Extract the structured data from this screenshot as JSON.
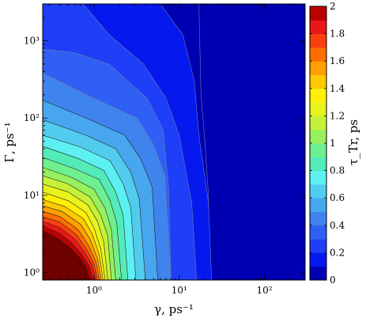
{
  "chart_data": {
    "type": "heatmap",
    "subtype": "filled-contour",
    "xlabel": "γ, ps⁻¹",
    "ylabel": "Γ, ps⁻¹",
    "colorbar_label": "τ_Tr, ps",
    "x_scale": "log",
    "y_scale": "log",
    "xlim": [
      0.25,
      300
    ],
    "ylim": [
      0.8,
      3000
    ],
    "x_ticks": [
      {
        "value": 1,
        "label": "10⁰"
      },
      {
        "value": 10,
        "label": "10¹"
      },
      {
        "value": 100,
        "label": "10²"
      }
    ],
    "y_ticks": [
      {
        "value": 1,
        "label": "10⁰"
      },
      {
        "value": 10,
        "label": "10¹"
      },
      {
        "value": 100,
        "label": "10²"
      },
      {
        "value": 1000,
        "label": "10³"
      }
    ],
    "colorbar": {
      "min": 0,
      "max": 2,
      "step": 0.1,
      "tick_labels": [
        "0",
        "0.2",
        "0.4",
        "0.6",
        "0.8",
        "1",
        "1.2",
        "1.4",
        "1.6",
        "1.8",
        "2"
      ],
      "colors": [
        "#0000b3",
        "#0519ee",
        "#1e3ef7",
        "#2f5ff4",
        "#3f83ee",
        "#47a6ee",
        "#52ccee",
        "#5cf0f2",
        "#53ecb8",
        "#6ef090",
        "#97f05e",
        "#c5f238",
        "#e8f21c",
        "#fff004",
        "#ffca00",
        "#ffa000",
        "#ff6f00",
        "#fa4010",
        "#e81818",
        "#bc0000",
        "#6e0000"
      ]
    },
    "grid": false,
    "boundaries": [
      {
        "level": 2.0,
        "points": [
          [
            0.25,
            3.5
          ],
          [
            0.35,
            2.9
          ],
          [
            0.5,
            2.2
          ],
          [
            0.65,
            1.65
          ],
          [
            0.8,
            1.2
          ],
          [
            0.9,
            0.8
          ]
        ]
      },
      {
        "level": 1.9,
        "points": [
          [
            0.25,
            4.0
          ],
          [
            0.4,
            3.2
          ],
          [
            0.55,
            2.4
          ],
          [
            0.72,
            1.7
          ],
          [
            0.88,
            1.2
          ],
          [
            0.98,
            0.8
          ]
        ]
      },
      {
        "level": 1.8,
        "points": [
          [
            0.25,
            4.6
          ],
          [
            0.4,
            3.8
          ],
          [
            0.6,
            2.7
          ],
          [
            0.78,
            1.8
          ],
          [
            0.95,
            1.25
          ],
          [
            1.05,
            0.8
          ]
        ]
      },
      {
        "level": 1.7,
        "points": [
          [
            0.25,
            5.3
          ],
          [
            0.4,
            4.5
          ],
          [
            0.62,
            3.1
          ],
          [
            0.82,
            2.0
          ],
          [
            1.0,
            1.3
          ],
          [
            1.1,
            0.8
          ]
        ]
      },
      {
        "level": 1.6,
        "points": [
          [
            0.25,
            6.2
          ],
          [
            0.4,
            5.3
          ],
          [
            0.65,
            3.6
          ],
          [
            0.85,
            2.3
          ],
          [
            1.05,
            1.4
          ],
          [
            1.16,
            0.8
          ]
        ]
      },
      {
        "level": 1.5,
        "points": [
          [
            0.25,
            7.3
          ],
          [
            0.42,
            6.2
          ],
          [
            0.7,
            4.2
          ],
          [
            0.9,
            2.7
          ],
          [
            1.1,
            1.5
          ],
          [
            1.22,
            0.8
          ]
        ]
      },
      {
        "level": 1.4,
        "points": [
          [
            0.25,
            8.8
          ],
          [
            0.45,
            7.2
          ],
          [
            0.75,
            5.0
          ],
          [
            0.95,
            3.2
          ],
          [
            1.15,
            1.7
          ],
          [
            1.28,
            0.8
          ]
        ]
      },
      {
        "level": 1.3,
        "points": [
          [
            0.25,
            11
          ],
          [
            0.5,
            8.5
          ],
          [
            0.8,
            6.0
          ],
          [
            1.0,
            3.8
          ],
          [
            1.2,
            2.0
          ],
          [
            1.35,
            0.8
          ]
        ]
      },
      {
        "level": 1.2,
        "points": [
          [
            0.25,
            14
          ],
          [
            0.5,
            11
          ],
          [
            0.85,
            7.5
          ],
          [
            1.1,
            4.6
          ],
          [
            1.3,
            2.5
          ],
          [
            1.45,
            0.8
          ]
        ]
      },
      {
        "level": 1.1,
        "points": [
          [
            0.25,
            18
          ],
          [
            0.5,
            14
          ],
          [
            0.9,
            9.5
          ],
          [
            1.2,
            5.5
          ],
          [
            1.45,
            3.0
          ],
          [
            1.6,
            0.8
          ]
        ]
      },
      {
        "level": 1.0,
        "points": [
          [
            0.25,
            23
          ],
          [
            0.55,
            17
          ],
          [
            1.0,
            12
          ],
          [
            1.35,
            6.8
          ],
          [
            1.6,
            3.6
          ],
          [
            1.8,
            0.8
          ]
        ]
      },
      {
        "level": 0.9,
        "points": [
          [
            0.25,
            31
          ],
          [
            0.6,
            22
          ],
          [
            1.15,
            16
          ],
          [
            1.55,
            8.5
          ],
          [
            1.85,
            4.4
          ],
          [
            2.1,
            0.8
          ]
        ]
      },
      {
        "level": 0.8,
        "points": [
          [
            0.25,
            43
          ],
          [
            0.65,
            30
          ],
          [
            1.3,
            21
          ],
          [
            1.8,
            11
          ],
          [
            2.2,
            5.5
          ],
          [
            2.5,
            0.8
          ]
        ]
      },
      {
        "level": 0.7,
        "points": [
          [
            0.25,
            60
          ],
          [
            0.7,
            42
          ],
          [
            1.55,
            28
          ],
          [
            2.2,
            14
          ],
          [
            2.7,
            7.0
          ],
          [
            3.1,
            0.8
          ]
        ]
      },
      {
        "level": 0.6,
        "points": [
          [
            0.25,
            95
          ],
          [
            0.8,
            60
          ],
          [
            1.8,
            40
          ],
          [
            2.7,
            20
          ],
          [
            3.4,
            9.0
          ],
          [
            4.0,
            0.8
          ]
        ]
      },
      {
        "level": 0.5,
        "points": [
          [
            0.25,
            170
          ],
          [
            0.9,
            95
          ],
          [
            2.3,
            60
          ],
          [
            3.5,
            30
          ],
          [
            4.8,
            13
          ],
          [
            5.6,
            0.8
          ]
        ]
      },
      {
        "level": 0.4,
        "points": [
          [
            0.25,
            380
          ],
          [
            1.0,
            180
          ],
          [
            3.2,
            100
          ],
          [
            5.0,
            45
          ],
          [
            6.8,
            18
          ],
          [
            8.0,
            0.8
          ]
        ]
      },
      {
        "level": 0.3,
        "points": [
          [
            0.25,
            780
          ],
          [
            0.6,
            700
          ],
          [
            1.5,
            500
          ],
          [
            4.2,
            180
          ],
          [
            6.5,
            70
          ],
          [
            7.5,
            12
          ],
          [
            8.0,
            0.8
          ]
        ]
      },
      {
        "level": 0.2,
        "points": [
          [
            0.75,
            3000
          ],
          [
            1.5,
            1200
          ],
          [
            3.8,
            500
          ],
          [
            7.0,
            180
          ],
          [
            10,
            60
          ],
          [
            14,
            8
          ],
          [
            16,
            0.8
          ]
        ]
      },
      {
        "level": 0.1,
        "points": [
          [
            6.0,
            3000
          ],
          [
            11,
            1200
          ],
          [
            15,
            300
          ],
          [
            17,
            60
          ],
          [
            22,
            8
          ],
          [
            24,
            0.8
          ]
        ]
      },
      {
        "level": 0.0,
        "points": [
          [
            17,
            3000
          ],
          [
            17.5,
            800
          ],
          [
            18,
            200
          ],
          [
            20,
            50
          ],
          [
            22,
            10
          ],
          [
            23,
            0.8
          ]
        ]
      }
    ]
  }
}
